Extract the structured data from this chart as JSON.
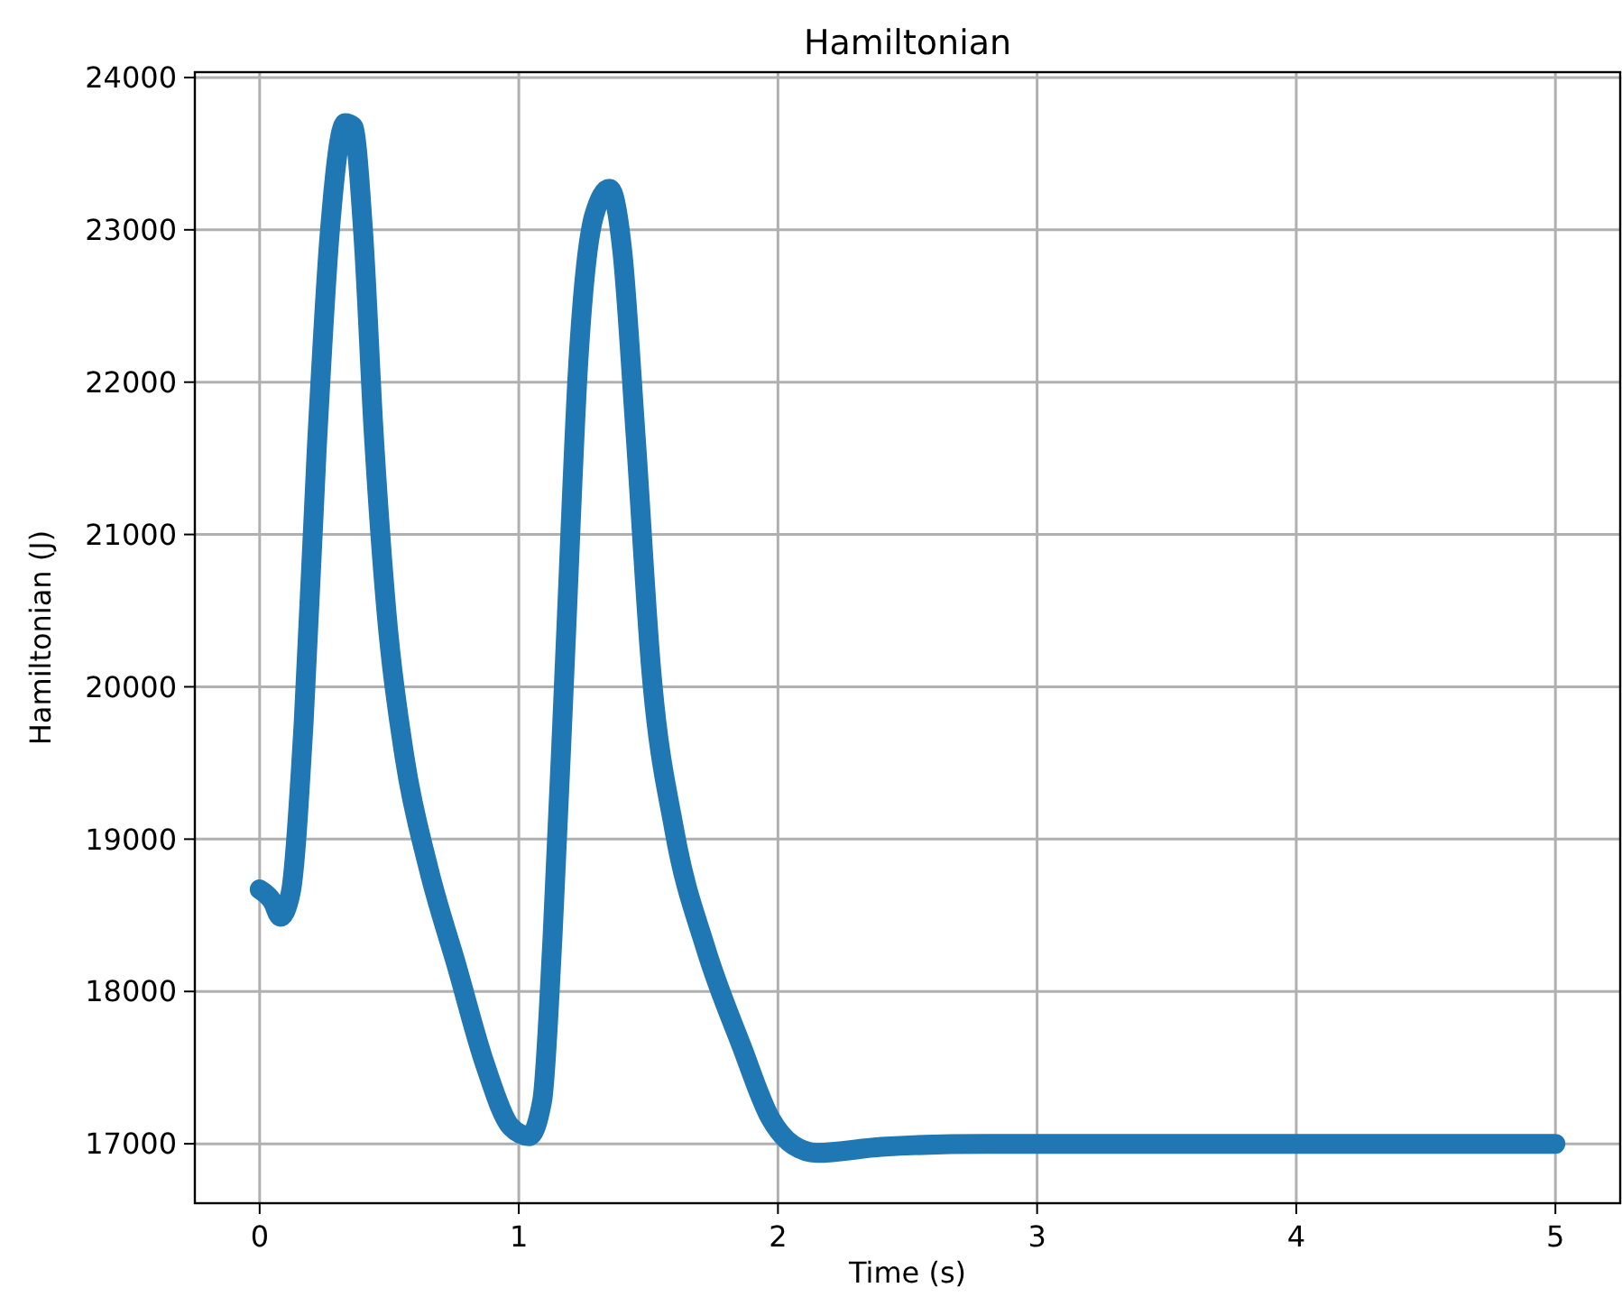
{
  "chart_data": {
    "type": "line",
    "title": "Hamiltonian",
    "xlabel": "Time (s)",
    "ylabel": "Hamiltonian (J)",
    "xlim": [
      -0.25,
      5.25
    ],
    "xticks": [
      0,
      1,
      2,
      3,
      4,
      5
    ],
    "ylim": [
      16610,
      24035
    ],
    "yticks": [
      17000,
      18000,
      19000,
      20000,
      21000,
      22000,
      23000,
      24000
    ],
    "grid": true,
    "line_style": "solid",
    "series": [
      {
        "color": "#1f77b4",
        "x": [
          0,
          0.05,
          0.08,
          0.12,
          0.17,
          0.22,
          0.27,
          0.33,
          0.36,
          0.4,
          0.44,
          0.49,
          0.56,
          0.65,
          0.76,
          0.87,
          0.97,
          1.04,
          1.09,
          1.13,
          1.18,
          1.23,
          1.29,
          1.35,
          1.4,
          1.45,
          1.51,
          1.6,
          1.72,
          1.86,
          1.97,
          2.06,
          2.15,
          2.4,
          2.8,
          3.5,
          4,
          5
        ],
        "values": [
          18670,
          18590,
          18490,
          18650,
          19770,
          21550,
          22970,
          23700,
          23680,
          22970,
          21670,
          20480,
          19530,
          18820,
          18170,
          17520,
          17110,
          17050,
          17280,
          18350,
          20250,
          22140,
          23090,
          23270,
          22850,
          21670,
          20130,
          19060,
          18290,
          17640,
          17170,
          16990,
          16940,
          16980,
          17000,
          17000,
          17000,
          17000
        ]
      }
    ]
  }
}
